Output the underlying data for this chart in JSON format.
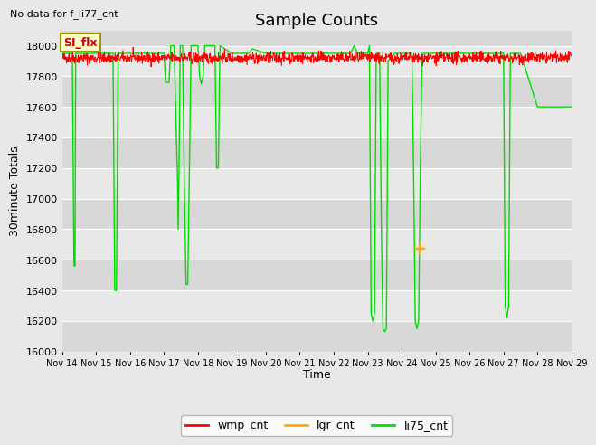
{
  "title": "Sample Counts",
  "top_left_text": "No data for f_li77_cnt",
  "ylabel": "30minute Totals",
  "xlabel": "Time",
  "ylim": [
    16000,
    18100
  ],
  "xlim": [
    0,
    15
  ],
  "fig_bg_color": "#e8e8e8",
  "plot_bg_color_light": "#e8e8e8",
  "plot_bg_color_dark": "#d8d8d8",
  "si_flx_label": "SI_flx",
  "wmp_cnt_base": 17920,
  "wmp_noise": 18,
  "x_tick_labels": [
    "Nov 14",
    "Nov 15",
    "Nov 16",
    "Nov 17",
    "Nov 18",
    "Nov 19",
    "Nov 20",
    "Nov 21",
    "Nov 22",
    "Nov 23",
    "Nov 24",
    "Nov 25",
    "Nov 26",
    "Nov 27",
    "Nov 28",
    "Nov 29"
  ],
  "green_line_data": [
    [
      0.0,
      17950
    ],
    [
      0.3,
      17950
    ],
    [
      0.3,
      17950
    ],
    [
      0.35,
      16560
    ],
    [
      0.38,
      16560
    ],
    [
      0.4,
      17950
    ],
    [
      0.7,
      17950
    ],
    [
      1.0,
      17950
    ],
    [
      1.05,
      17950
    ],
    [
      1.5,
      17950
    ],
    [
      1.55,
      16400
    ],
    [
      1.6,
      16400
    ],
    [
      1.65,
      17950
    ],
    [
      2.0,
      17950
    ],
    [
      2.5,
      17950
    ],
    [
      3.0,
      17950
    ],
    [
      3.05,
      17760
    ],
    [
      3.1,
      17760
    ],
    [
      3.15,
      17760
    ],
    [
      3.2,
      18000
    ],
    [
      3.3,
      18000
    ],
    [
      3.35,
      17540
    ],
    [
      3.4,
      17120
    ],
    [
      3.42,
      16800
    ],
    [
      3.44,
      17120
    ],
    [
      3.48,
      18000
    ],
    [
      3.55,
      18000
    ],
    [
      3.6,
      17080
    ],
    [
      3.65,
      16440
    ],
    [
      3.7,
      16440
    ],
    [
      3.75,
      17200
    ],
    [
      3.8,
      18000
    ],
    [
      4.0,
      18000
    ],
    [
      4.05,
      17800
    ],
    [
      4.1,
      17750
    ],
    [
      4.15,
      17800
    ],
    [
      4.2,
      18000
    ],
    [
      4.5,
      18000
    ],
    [
      4.55,
      17200
    ],
    [
      4.6,
      17200
    ],
    [
      4.65,
      18000
    ],
    [
      5.0,
      17950
    ],
    [
      5.5,
      17950
    ],
    [
      5.6,
      17980
    ],
    [
      6.0,
      17950
    ],
    [
      6.5,
      17950
    ],
    [
      7.0,
      17950
    ],
    [
      7.5,
      17950
    ],
    [
      8.0,
      17950
    ],
    [
      8.5,
      17950
    ],
    [
      8.6,
      18000
    ],
    [
      8.7,
      17950
    ],
    [
      9.0,
      17950
    ],
    [
      9.05,
      18000
    ],
    [
      9.1,
      16250
    ],
    [
      9.15,
      16200
    ],
    [
      9.2,
      16250
    ],
    [
      9.25,
      17950
    ],
    [
      9.35,
      17950
    ],
    [
      9.4,
      16850
    ],
    [
      9.45,
      16150
    ],
    [
      9.5,
      16130
    ],
    [
      9.55,
      16150
    ],
    [
      9.6,
      17900
    ],
    [
      9.8,
      17950
    ],
    [
      10.0,
      17950
    ],
    [
      10.3,
      17950
    ],
    [
      10.35,
      17200
    ],
    [
      10.4,
      16200
    ],
    [
      10.45,
      16150
    ],
    [
      10.5,
      16200
    ],
    [
      10.55,
      17200
    ],
    [
      10.6,
      17950
    ],
    [
      10.8,
      17950
    ],
    [
      11.0,
      17950
    ],
    [
      11.5,
      17950
    ],
    [
      12.0,
      17950
    ],
    [
      12.5,
      17950
    ],
    [
      13.0,
      17950
    ],
    [
      13.05,
      16300
    ],
    [
      13.1,
      16220
    ],
    [
      13.15,
      16300
    ],
    [
      13.2,
      17950
    ],
    [
      13.5,
      17950
    ],
    [
      14.0,
      17600
    ],
    [
      14.5,
      17600
    ],
    [
      15.0,
      17600
    ]
  ],
  "lgr_data": [
    [
      10.5,
      16670
    ],
    [
      10.52,
      16680
    ]
  ],
  "yticks": [
    16000,
    16200,
    16400,
    16600,
    16800,
    17000,
    17200,
    17400,
    17600,
    17800,
    18000
  ]
}
